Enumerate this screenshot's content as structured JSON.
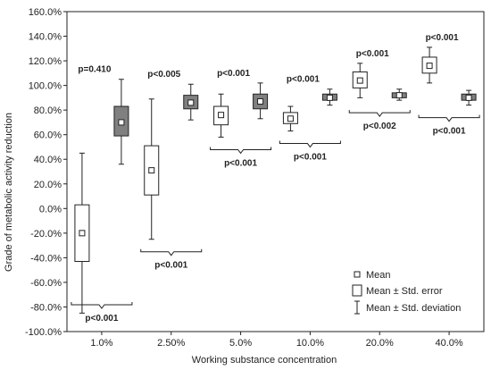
{
  "chart_data": {
    "type": "box",
    "xlabel": "Working substance concentration",
    "ylabel": "Grade of metabolic activity reduction",
    "ylim": [
      -100,
      160
    ],
    "yticks": [
      -100,
      -80,
      -60,
      -40,
      -20,
      0,
      20,
      40,
      60,
      80,
      100,
      120,
      140,
      160
    ],
    "ytick_labels": [
      "-100.0%",
      "-80.0%",
      "-60.0%",
      "-40.0%",
      "-20.0%",
      "0.0%",
      "20.0%",
      "40.0%",
      "60.0%",
      "80.0%",
      "100.0%",
      "120.0%",
      "140.0%",
      "160.0%"
    ],
    "categories": [
      "1.0%",
      "2.50%",
      "5.0%",
      "10.0%",
      "20.0%",
      "40.0%"
    ],
    "groups": [
      {
        "category": "1.0%",
        "boxes": [
          {
            "fill": "white",
            "mean": -20,
            "se_low": -43,
            "se_high": 3,
            "sd_low": -85,
            "sd_high": 45
          },
          {
            "fill": "gray",
            "mean": 70,
            "se_low": 59,
            "se_high": 83,
            "sd_low": 36,
            "sd_high": 105
          }
        ],
        "pvalue_upper": "p=0.410",
        "pvalue_lower": "p<0.001"
      },
      {
        "category": "2.50%",
        "boxes": [
          {
            "fill": "white",
            "mean": 31,
            "se_low": 11,
            "se_high": 51,
            "sd_low": -25,
            "sd_high": 89
          },
          {
            "fill": "gray",
            "mean": 86,
            "se_low": 81,
            "se_high": 92,
            "sd_low": 72,
            "sd_high": 101
          }
        ],
        "pvalue_upper": "p<0.005",
        "pvalue_lower": "p<0.001"
      },
      {
        "category": "5.0%",
        "boxes": [
          {
            "fill": "white",
            "mean": 76,
            "se_low": 68,
            "se_high": 83,
            "sd_low": 58,
            "sd_high": 93
          },
          {
            "fill": "gray",
            "mean": 87,
            "se_low": 81,
            "se_high": 93,
            "sd_low": 73,
            "sd_high": 102
          }
        ],
        "pvalue_upper": "p<0.001",
        "pvalue_lower": "p<0.001"
      },
      {
        "category": "10.0%",
        "boxes": [
          {
            "fill": "white",
            "mean": 73,
            "se_low": 69,
            "se_high": 78,
            "sd_low": 63,
            "sd_high": 83
          },
          {
            "fill": "gray",
            "mean": 90,
            "se_low": 88,
            "se_high": 93,
            "sd_low": 84,
            "sd_high": 97
          }
        ],
        "pvalue_upper": "p<0.001",
        "pvalue_lower": "p<0.001"
      },
      {
        "category": "20.0%",
        "boxes": [
          {
            "fill": "white",
            "mean": 104,
            "se_low": 98,
            "se_high": 111,
            "sd_low": 90,
            "sd_high": 118
          },
          {
            "fill": "gray",
            "mean": 92,
            "se_low": 90,
            "se_high": 94,
            "sd_low": 88,
            "sd_high": 97
          }
        ],
        "pvalue_upper": "p<0.001",
        "pvalue_lower": "p<0.002"
      },
      {
        "category": "40.0%",
        "boxes": [
          {
            "fill": "white",
            "mean": 116,
            "se_low": 110,
            "se_high": 123,
            "sd_low": 102,
            "sd_high": 131
          },
          {
            "fill": "gray",
            "mean": 90,
            "se_low": 88,
            "se_high": 93,
            "sd_low": 84,
            "sd_high": 96
          }
        ],
        "pvalue_upper": "p<0.001",
        "pvalue_lower": "p<0.001"
      }
    ],
    "legend": {
      "position": "bottom-right",
      "entries": [
        "Mean",
        "Mean ± Std. error",
        "Mean ± Std. deviation"
      ]
    },
    "grid": false,
    "colors": {
      "gray_box": "#808080",
      "white_box": "#ffffff",
      "stroke": "#222222"
    }
  }
}
